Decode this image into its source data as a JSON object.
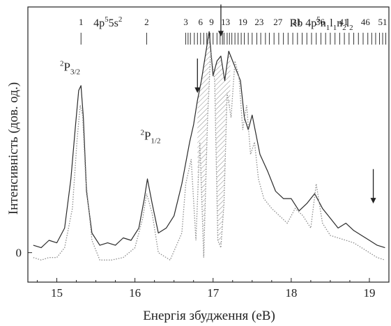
{
  "chart_data": {
    "type": "line",
    "xlabel": "Енергія збудження (еВ)",
    "ylabel": "Інтенсивність (дов. од.)",
    "xlim": [
      14.63,
      19.25
    ],
    "ylim": [
      -0.12,
      1.0
    ],
    "x_ticks": [
      "15",
      "16",
      "17",
      "18",
      "19"
    ],
    "y_ticks": [
      "0"
    ],
    "series": [
      {
        "style": "solid-dark",
        "x": [
          14.7,
          14.8,
          14.9,
          15.0,
          15.1,
          15.18,
          15.24,
          15.28,
          15.31,
          15.34,
          15.38,
          15.45,
          15.55,
          15.65,
          15.75,
          15.85,
          15.95,
          16.05,
          16.12,
          16.16,
          16.22,
          16.3,
          16.4,
          16.5,
          16.6,
          16.7,
          16.75,
          16.8,
          16.85,
          16.9,
          16.95,
          17.0,
          17.05,
          17.1,
          17.15,
          17.2,
          17.25,
          17.3,
          17.35,
          17.4,
          17.45,
          17.5,
          17.55,
          17.6,
          17.7,
          17.8,
          17.9,
          18.0,
          18.1,
          18.2,
          18.3,
          18.4,
          18.5,
          18.6,
          18.7,
          18.8,
          18.9,
          19.0,
          19.1,
          19.2
        ],
        "values": [
          0.03,
          0.02,
          0.05,
          0.04,
          0.1,
          0.3,
          0.52,
          0.66,
          0.68,
          0.55,
          0.25,
          0.08,
          0.03,
          0.04,
          0.03,
          0.06,
          0.05,
          0.1,
          0.22,
          0.3,
          0.2,
          0.08,
          0.1,
          0.15,
          0.28,
          0.45,
          0.52,
          0.62,
          0.7,
          0.8,
          0.9,
          0.72,
          0.78,
          0.8,
          0.7,
          0.82,
          0.78,
          0.74,
          0.7,
          0.55,
          0.5,
          0.56,
          0.48,
          0.4,
          0.33,
          0.25,
          0.22,
          0.22,
          0.17,
          0.2,
          0.24,
          0.18,
          0.14,
          0.1,
          0.12,
          0.09,
          0.07,
          0.05,
          0.03,
          0.02
        ]
      },
      {
        "style": "dotted-grey",
        "x": [
          14.7,
          14.8,
          14.9,
          15.0,
          15.1,
          15.2,
          15.26,
          15.3,
          15.33,
          15.37,
          15.45,
          15.55,
          15.7,
          15.85,
          16.0,
          16.1,
          16.15,
          16.22,
          16.3,
          16.45,
          16.6,
          16.65,
          16.72,
          16.78,
          16.83,
          16.88,
          16.93,
          16.97,
          17.02,
          17.06,
          17.1,
          17.14,
          17.18,
          17.23,
          17.28,
          17.33,
          17.38,
          17.43,
          17.48,
          17.53,
          17.58,
          17.65,
          17.75,
          17.85,
          17.95,
          18.05,
          18.15,
          18.25,
          18.32,
          18.4,
          18.5,
          18.6,
          18.7,
          18.8,
          18.9,
          19.0,
          19.1,
          19.2
        ],
        "values": [
          -0.02,
          -0.03,
          -0.02,
          -0.02,
          0.02,
          0.18,
          0.46,
          0.6,
          0.56,
          0.3,
          0.05,
          -0.03,
          -0.03,
          -0.02,
          0.02,
          0.14,
          0.24,
          0.16,
          0.0,
          -0.03,
          0.08,
          0.28,
          0.38,
          0.05,
          0.45,
          -0.02,
          0.55,
          0.82,
          0.7,
          0.05,
          0.02,
          0.2,
          0.65,
          0.55,
          0.78,
          0.72,
          0.5,
          0.6,
          0.4,
          0.45,
          0.3,
          0.22,
          0.18,
          0.15,
          0.12,
          0.18,
          0.15,
          0.1,
          0.28,
          0.12,
          0.07,
          0.06,
          0.05,
          0.04,
          0.02,
          0.0,
          -0.02,
          -0.03
        ]
      }
    ],
    "annotations": [
      {
        "x": 15.04,
        "y": 0.74,
        "main": "P",
        "pre_sup": "2",
        "sub": "3/2"
      },
      {
        "x": 16.07,
        "y": 0.46,
        "main": "P",
        "pre_sup": "2",
        "sub": "1/2"
      },
      {
        "x": 15.47,
        "y": 0.92,
        "parts": [
          [
            "4p",
            ""
          ],
          [
            "5",
            "sup"
          ],
          [
            "5s",
            ""
          ],
          [
            "2",
            "sup"
          ]
        ]
      },
      {
        "x": 17.98,
        "y": 0.92,
        "parts": [
          [
            "Rb 4p",
            ""
          ],
          [
            "5",
            "sup"
          ],
          [
            "n",
            ""
          ],
          [
            "1",
            "sub"
          ],
          [
            "l",
            ""
          ],
          [
            "1",
            "sub"
          ],
          [
            "n",
            ""
          ],
          [
            "2",
            "sub"
          ],
          [
            "l",
            ""
          ],
          [
            "2",
            "sub"
          ]
        ]
      }
    ],
    "arrows": [
      {
        "x": 16.8,
        "y_from": 0.79,
        "y_to": 0.65
      },
      {
        "x": 17.1,
        "y_from": 1.01,
        "y_to": 0.88
      },
      {
        "x": 19.05,
        "y_from": 0.34,
        "y_to": 0.2
      }
    ],
    "states": {
      "numbers": [
        "1",
        "2",
        "3",
        "6",
        "9",
        "13",
        "19",
        "23",
        "27",
        "31",
        "36",
        "41",
        "46",
        "51"
      ],
      "number_x": [
        15.31,
        16.15,
        16.65,
        16.84,
        16.98,
        17.16,
        17.38,
        17.59,
        17.83,
        18.07,
        18.37,
        18.67,
        18.95,
        19.17
      ],
      "line_x": [
        15.31,
        16.15,
        16.65,
        16.68,
        16.71,
        16.76,
        16.8,
        16.84,
        16.88,
        16.92,
        16.96,
        17.0,
        17.05,
        17.09,
        17.12,
        17.14,
        17.18,
        17.21,
        17.24,
        17.28,
        17.32,
        17.36,
        17.4,
        17.45,
        17.5,
        17.56,
        17.61,
        17.67,
        17.72,
        17.78,
        17.84,
        17.9,
        17.96,
        18.02,
        18.08,
        18.14,
        18.2,
        18.26,
        18.32,
        18.38,
        18.44,
        18.5,
        18.56,
        18.62,
        18.68,
        18.74,
        18.8,
        18.86,
        18.92,
        18.98,
        19.03,
        19.08,
        19.13,
        19.17,
        19.21
      ]
    }
  }
}
